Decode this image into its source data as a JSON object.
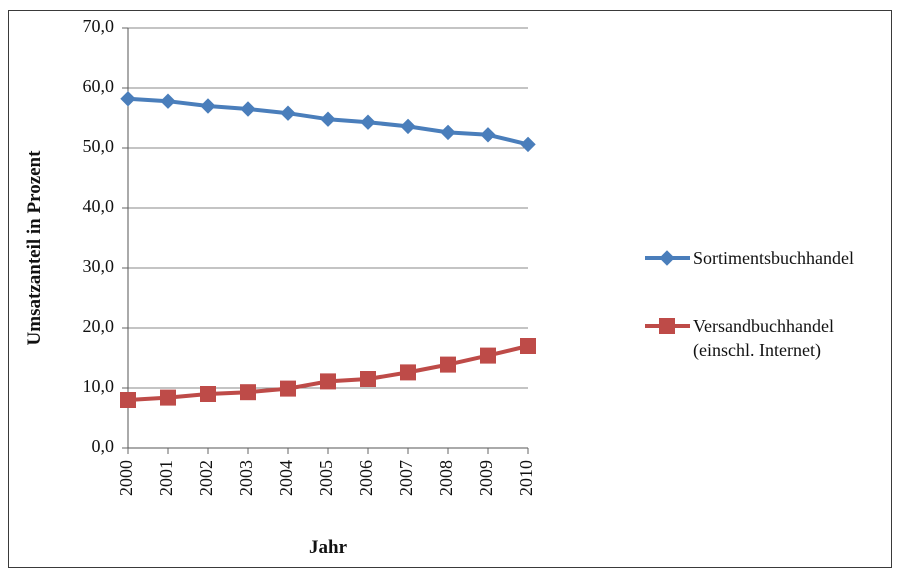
{
  "chart_data": {
    "type": "line",
    "xlabel": "Jahr",
    "ylabel": "Umsatzanteil in Prozent",
    "ylim": [
      0,
      70
    ],
    "y_ticks": [
      "0,0",
      "10,0",
      "20,0",
      "30,0",
      "40,0",
      "50,0",
      "60,0",
      "70,0"
    ],
    "categories": [
      "2000",
      "2001",
      "2002",
      "2003",
      "2004",
      "2005",
      "2006",
      "2007",
      "2008",
      "2009",
      "2010"
    ],
    "grid": true,
    "legend_position": "right",
    "series": [
      {
        "name": "Sortimentsbuchhandel",
        "name_lines": [
          "Sortimentsbuchhandel"
        ],
        "color": "#4a7ebb",
        "marker": "diamond",
        "values": [
          58.2,
          57.8,
          57.0,
          56.5,
          55.8,
          54.8,
          54.3,
          53.6,
          52.6,
          52.2,
          50.6
        ]
      },
      {
        "name": "Versandbuchhandel (einschl. Internet)",
        "name_lines": [
          "Versandbuchhandel",
          "(einschl. Internet)"
        ],
        "color": "#be4b48",
        "marker": "square",
        "values": [
          8.0,
          8.4,
          9.0,
          9.3,
          9.9,
          11.1,
          11.5,
          12.6,
          13.9,
          15.4,
          17.0
        ]
      }
    ]
  }
}
